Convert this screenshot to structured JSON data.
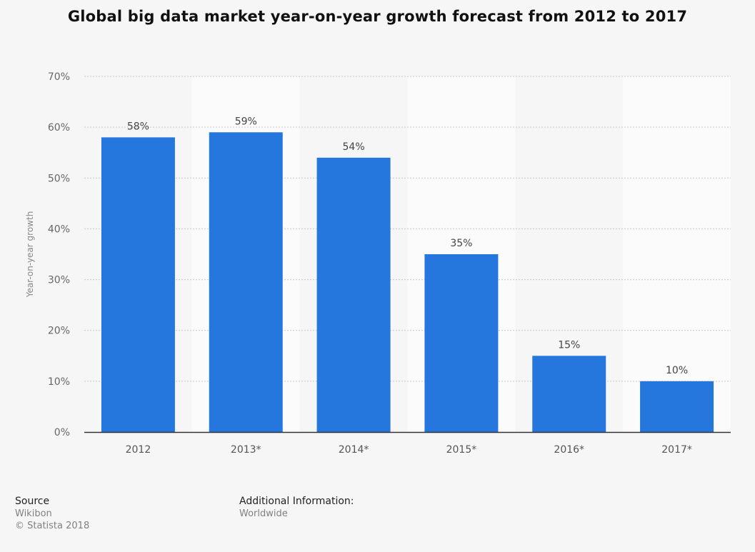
{
  "chart_data": {
    "type": "bar",
    "title": "Global big data market year-on-year growth forecast from 2012 to 2017",
    "ylabel": "Year-on-year growth",
    "xlabel": "",
    "categories": [
      "2012",
      "2013*",
      "2014*",
      "2015*",
      "2016*",
      "2017*"
    ],
    "values": [
      58,
      59,
      54,
      35,
      15,
      10
    ],
    "value_labels": [
      "58%",
      "59%",
      "54%",
      "35%",
      "15%",
      "10%"
    ],
    "ylim": [
      0,
      70
    ],
    "yticks": [
      "0%",
      "10%",
      "20%",
      "30%",
      "40%",
      "50%",
      "60%",
      "70%"
    ],
    "grid": true,
    "legend": "none",
    "bar_color": "#2576dd"
  },
  "footer": {
    "source_heading": "Source",
    "source_lines": [
      "Wikibon",
      "© Statista 2018"
    ],
    "additional_heading": "Additional Information:",
    "additional_lines": [
      "Worldwide"
    ]
  }
}
